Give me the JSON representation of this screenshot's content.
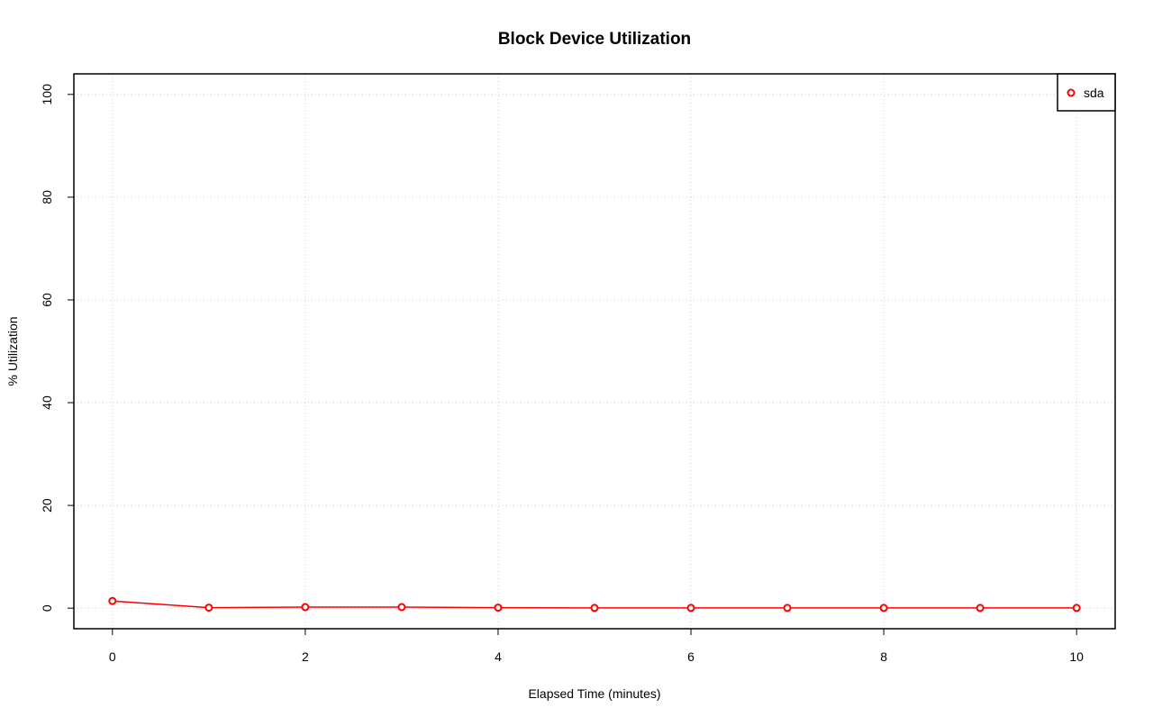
{
  "chart_data": {
    "type": "line",
    "title": "Block Device Utilization",
    "x_label": "Elapsed Time (minutes)",
    "y_label": "% Utilization",
    "x": [
      0,
      1,
      2,
      3,
      4,
      5,
      6,
      7,
      8,
      9,
      10
    ],
    "series": [
      {
        "name": "sda",
        "color": "#ff0000",
        "values": [
          1.4,
          0.1,
          0.2,
          0.2,
          0.1,
          0.05,
          0.05,
          0.05,
          0.05,
          0.05,
          0.05
        ]
      }
    ],
    "xlim": [
      -0.4,
      10.4
    ],
    "ylim": [
      -4,
      104
    ],
    "xticks": [
      0,
      2,
      4,
      6,
      8,
      10
    ],
    "yticks": [
      0,
      20,
      40,
      60,
      80,
      100
    ],
    "grid": true,
    "legend": "top-right"
  }
}
